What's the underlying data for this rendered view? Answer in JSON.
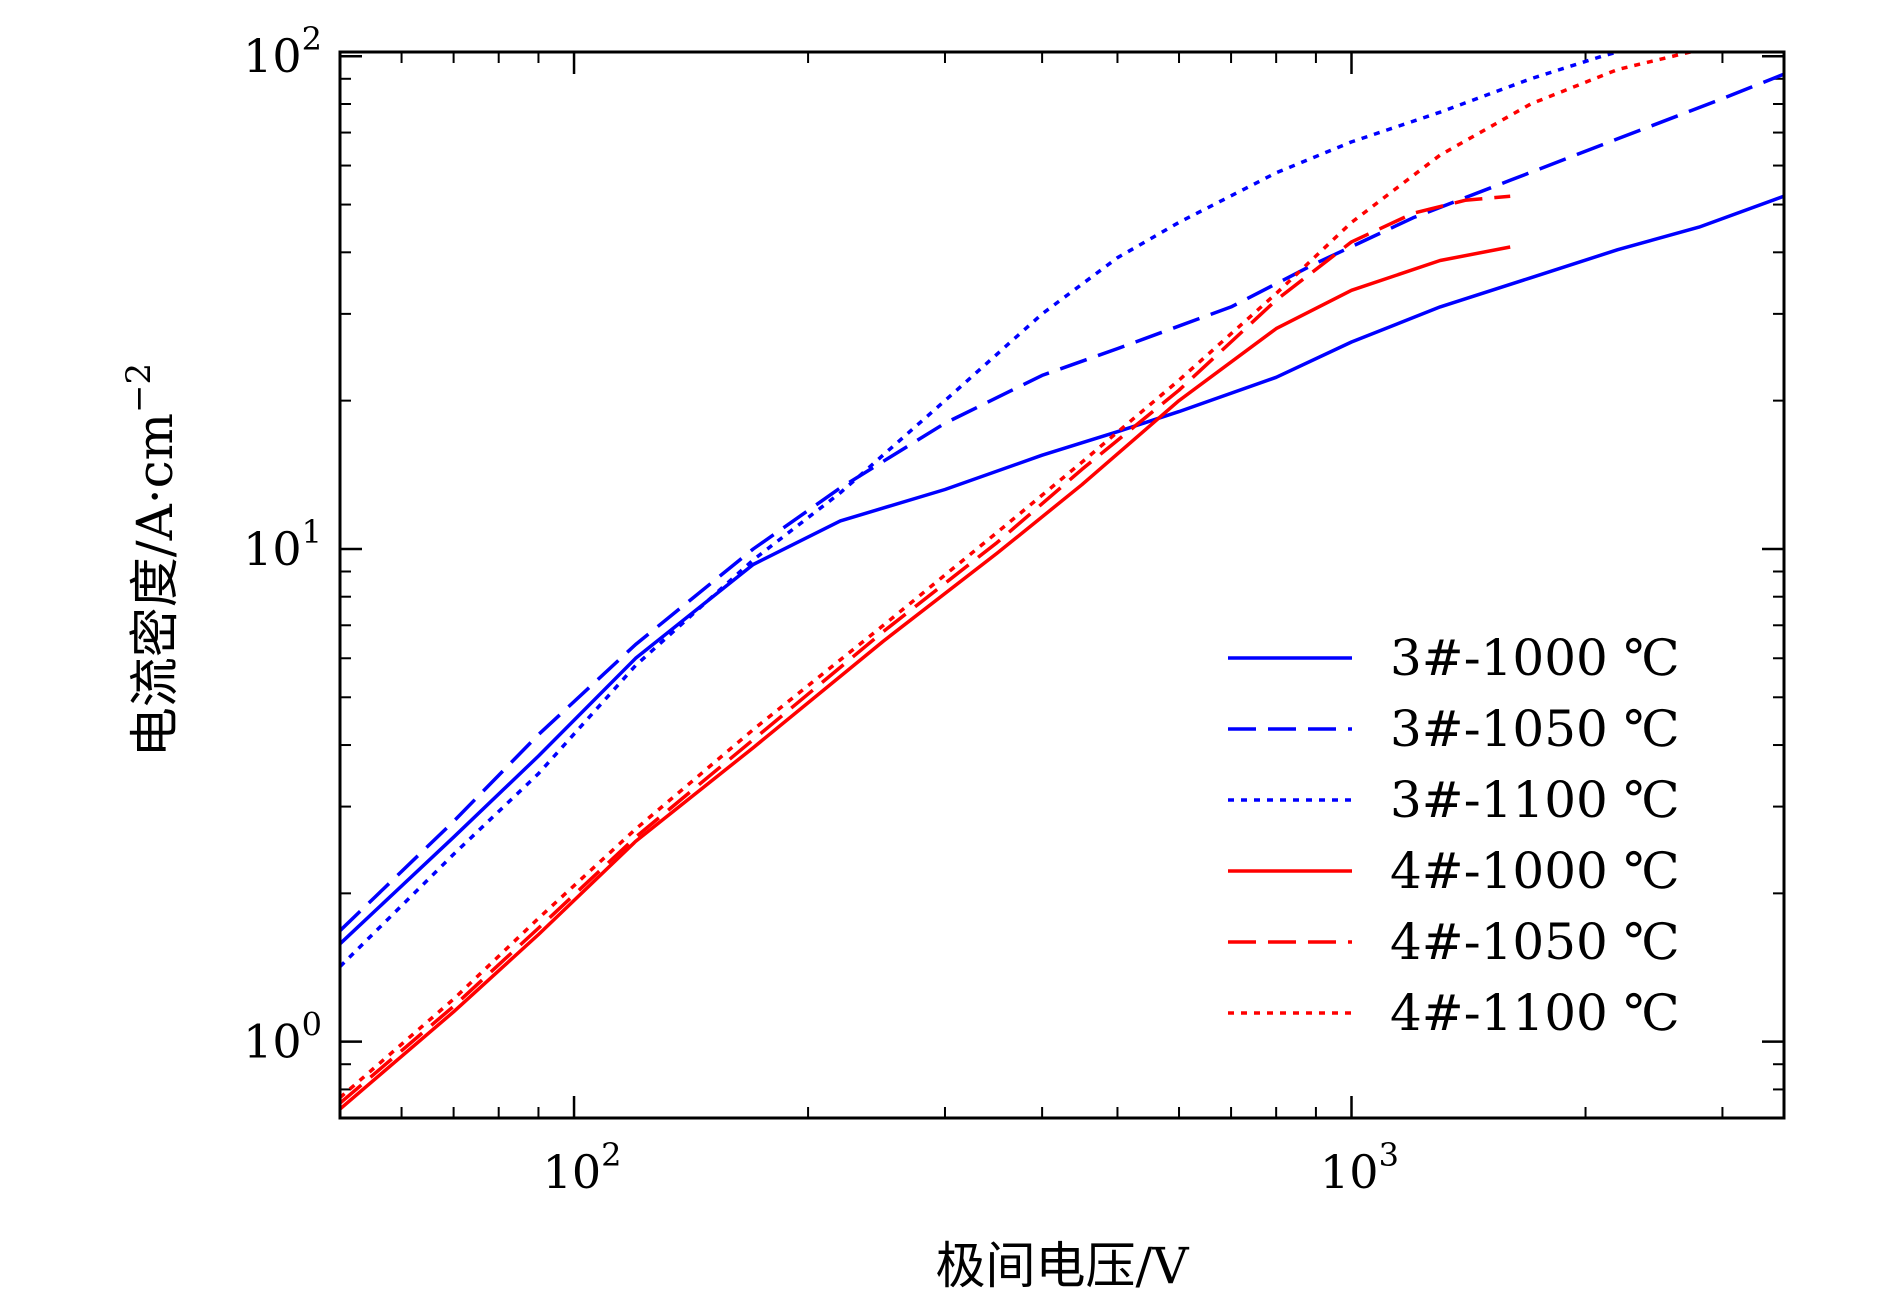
{
  "chart_data": {
    "type": "line",
    "xlabel": "极间电压/V",
    "ylabel": "电流密度/A·cm",
    "ylabel_exp": "−2",
    "xscale": "log",
    "yscale": "log",
    "xlim": [
      50,
      3600
    ],
    "ylim": [
      0.7,
      102
    ],
    "x_ticks": [
      {
        "base": "10",
        "exp": "2",
        "value": 100
      },
      {
        "base": "10",
        "exp": "3",
        "value": 1000
      }
    ],
    "y_ticks": [
      {
        "base": "10",
        "exp": "0",
        "value": 1
      },
      {
        "base": "10",
        "exp": "1",
        "value": 10
      },
      {
        "base": "10",
        "exp": "2",
        "value": 100
      }
    ],
    "legend_position": "lower-right",
    "series": [
      {
        "name": "3#-1000 ℃",
        "color": "#0000ff",
        "style": "solid",
        "x": [
          50,
          70,
          90,
          120,
          170,
          220,
          300,
          400,
          500,
          600,
          800,
          1000,
          1300,
          1700,
          2200,
          2800,
          3600
        ],
        "y": [
          1.58,
          2.6,
          3.8,
          6.0,
          9.3,
          11.4,
          13.2,
          15.5,
          17.3,
          19.0,
          22.3,
          26.3,
          31.0,
          35.5,
          40.5,
          45.0,
          52.0
        ]
      },
      {
        "name": "3#-1050 ℃",
        "color": "#0000ff",
        "style": "dashed",
        "x": [
          50,
          70,
          90,
          120,
          170,
          220,
          300,
          400,
          500,
          700,
          900,
          1200,
          1600,
          2200,
          3000,
          3600
        ],
        "y": [
          1.68,
          2.8,
          4.2,
          6.4,
          10.0,
          13.3,
          18.0,
          22.5,
          25.5,
          31.0,
          38.0,
          47.0,
          56.0,
          68.0,
          82.0,
          92.0
        ]
      },
      {
        "name": "3#-1100 ℃",
        "color": "#0000ff",
        "style": "dotted",
        "x": [
          50,
          70,
          90,
          120,
          170,
          220,
          300,
          400,
          500,
          600,
          800,
          1000,
          1300,
          1700,
          2100,
          2400
        ],
        "y": [
          1.42,
          2.4,
          3.5,
          5.8,
          9.5,
          13.0,
          20.0,
          30.0,
          39.0,
          46.0,
          58.0,
          67.0,
          77.0,
          90.0,
          100.0,
          106.0
        ]
      },
      {
        "name": "4#-1000 ℃",
        "color": "#ff0000",
        "style": "solid",
        "x": [
          50,
          70,
          90,
          120,
          170,
          250,
          350,
          450,
          600,
          800,
          1000,
          1300,
          1600
        ],
        "y": [
          0.73,
          1.15,
          1.65,
          2.55,
          3.95,
          6.5,
          9.8,
          13.5,
          20.0,
          28.0,
          33.5,
          38.5,
          41.0
        ]
      },
      {
        "name": "4#-1050 ℃",
        "color": "#ff0000",
        "style": "dashed",
        "x": [
          50,
          70,
          90,
          120,
          170,
          250,
          350,
          450,
          600,
          800,
          1000,
          1200,
          1400,
          1600
        ],
        "y": [
          0.75,
          1.18,
          1.7,
          2.6,
          4.1,
          6.8,
          10.3,
          14.5,
          21.0,
          32.0,
          42.0,
          48.0,
          51.0,
          52.0
        ]
      },
      {
        "name": "4#-1100 ℃",
        "color": "#ff0000",
        "style": "dotted",
        "x": [
          50,
          70,
          90,
          120,
          170,
          250,
          350,
          450,
          600,
          800,
          1000,
          1300,
          1700,
          2200,
          2800,
          3200
        ],
        "y": [
          0.77,
          1.22,
          1.78,
          2.7,
          4.3,
          7.0,
          10.8,
          15.0,
          22.0,
          33.0,
          46.0,
          63.0,
          80.0,
          94.0,
          103.0,
          109.0
        ]
      }
    ]
  }
}
